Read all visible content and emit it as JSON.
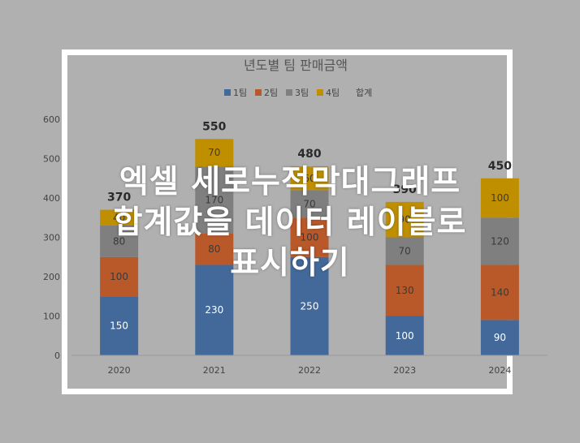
{
  "chart_data": {
    "type": "bar",
    "stacked": true,
    "title": "년도별 팀 판매금액",
    "categories": [
      "2020",
      "2021",
      "2022",
      "2023",
      "2024"
    ],
    "series": [
      {
        "name": "1팀",
        "color": "#42699a",
        "values": [
          150,
          230,
          250,
          100,
          90
        ]
      },
      {
        "name": "2팀",
        "color": "#b9592a",
        "values": [
          100,
          80,
          100,
          130,
          140
        ]
      },
      {
        "name": "3팀",
        "color": "#7f7f7f",
        "values": [
          80,
          170,
          70,
          70,
          120
        ]
      },
      {
        "name": "4팀",
        "color": "#bf8f00",
        "values": [
          40,
          70,
          60,
          90,
          100
        ]
      }
    ],
    "totals_name": "합계",
    "totals": [
      370,
      550,
      480,
      390,
      450
    ],
    "yticks": [
      "0",
      "100",
      "200",
      "300",
      "400",
      "500",
      "600"
    ],
    "ylim": [
      0,
      600
    ],
    "legend_position": "top",
    "grid": false
  },
  "overlay_lines": [
    "엑셀 세로누적막대그래프",
    "합계값을 데이터 레이블로",
    "표시하기"
  ],
  "colors": {
    "background": "#b0b0b0",
    "frame": "#ffffff",
    "overlay_text": "#ffffff"
  }
}
